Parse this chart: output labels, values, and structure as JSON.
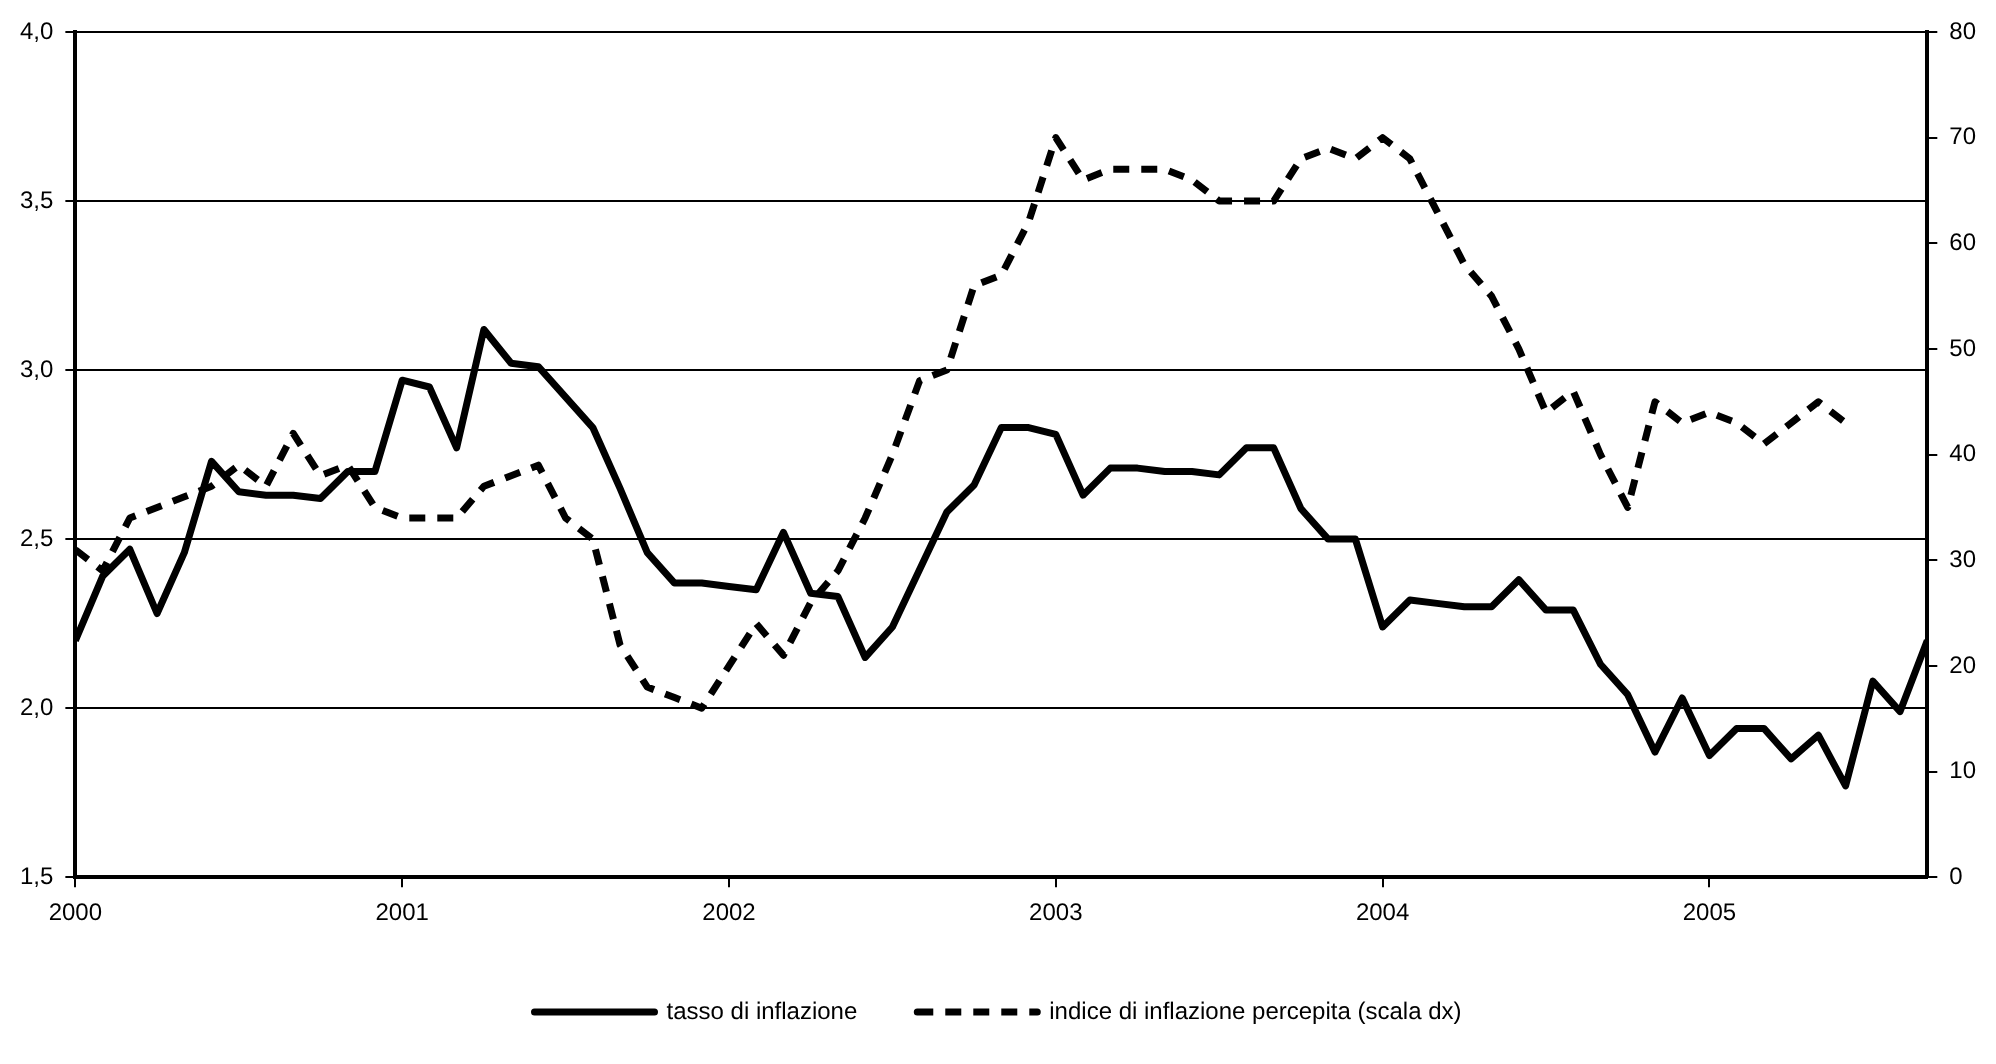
{
  "chart_data": {
    "type": "line",
    "x": [
      "2000-01",
      "2000-02",
      "2000-03",
      "2000-04",
      "2000-05",
      "2000-06",
      "2000-07",
      "2000-08",
      "2000-09",
      "2000-10",
      "2000-11",
      "2000-12",
      "2001-01",
      "2001-02",
      "2001-03",
      "2001-04",
      "2001-05",
      "2001-06",
      "2001-07",
      "2001-08",
      "2001-09",
      "2001-10",
      "2001-11",
      "2001-12",
      "2002-01",
      "2002-02",
      "2002-03",
      "2002-04",
      "2002-05",
      "2002-06",
      "2002-07",
      "2002-08",
      "2002-09",
      "2002-10",
      "2002-11",
      "2002-12",
      "2003-01",
      "2003-02",
      "2003-03",
      "2003-04",
      "2003-05",
      "2003-06",
      "2003-07",
      "2003-08",
      "2003-09",
      "2003-10",
      "2003-11",
      "2003-12",
      "2004-01",
      "2004-02",
      "2004-03",
      "2004-04",
      "2004-05",
      "2004-06",
      "2004-07",
      "2004-08",
      "2004-09",
      "2004-10",
      "2004-11",
      "2004-12",
      "2005-01",
      "2005-02",
      "2005-03",
      "2005-04",
      "2005-05",
      "2005-06",
      "2005-07",
      "2005-08",
      "2005-09"
    ],
    "series": [
      {
        "name": "tasso di inflazione",
        "color": "#000000",
        "line_style": "solid",
        "values": [
          2.2,
          2.39,
          2.47,
          2.28,
          2.46,
          2.73,
          2.64,
          2.63,
          2.63,
          2.62,
          2.7,
          2.7,
          2.97,
          2.95,
          2.77,
          3.12,
          3.02,
          3.01,
          2.92,
          2.83,
          2.65,
          2.46,
          2.37,
          2.37,
          2.36,
          2.35,
          2.52,
          2.34,
          2.33,
          2.15,
          2.24,
          2.41,
          2.58,
          2.66,
          2.83,
          2.83,
          2.81,
          2.63,
          2.71,
          2.71,
          2.7,
          2.7,
          2.69,
          2.77,
          2.77,
          2.59,
          2.5,
          2.5,
          2.24,
          2.32,
          2.31,
          2.3,
          2.3,
          2.38,
          2.29,
          2.29,
          2.13,
          2.04,
          1.87,
          2.03,
          1.86,
          1.94,
          1.94,
          1.85,
          1.92,
          1.77,
          2.08,
          1.99,
          2.2
        ]
      },
      {
        "name": "indice di inflazione percepita (scala dx)",
        "color": "#000000",
        "line_style": "dashed",
        "axis": "y2",
        "values": [
          31,
          29,
          34,
          35,
          36,
          37,
          39,
          37,
          42,
          38,
          39,
          35,
          34,
          34,
          34,
          37,
          38,
          39,
          34,
          32,
          22,
          18,
          17,
          16,
          20,
          24,
          21,
          26,
          29,
          34,
          40,
          47,
          48,
          56,
          57,
          62,
          70,
          66,
          67,
          67,
          67,
          66,
          64,
          64,
          64,
          68,
          69,
          68,
          70,
          68,
          63,
          58,
          55,
          50,
          44,
          46,
          40,
          35,
          45,
          43,
          44,
          43,
          41,
          43,
          45,
          43,
          null,
          null,
          null
        ]
      }
    ],
    "xlim": [
      "2000-01",
      "2005-09"
    ],
    "xticks": [
      {
        "value": "2000-01",
        "label": "2000"
      },
      {
        "value": "2001-01",
        "label": "2001"
      },
      {
        "value": "2002-01",
        "label": "2002"
      },
      {
        "value": "2003-01",
        "label": "2003"
      },
      {
        "value": "2004-01",
        "label": "2004"
      },
      {
        "value": "2005-01",
        "label": "2005"
      }
    ],
    "ylim": [
      1.5,
      4
    ],
    "yticks": [
      {
        "value": 1.5,
        "label": "1,5"
      },
      {
        "value": 2,
        "label": "2,0"
      },
      {
        "value": 2.5,
        "label": "2,5"
      },
      {
        "value": 3,
        "label": "3,0"
      },
      {
        "value": 3.5,
        "label": "3,5"
      },
      {
        "value": 4,
        "label": "4,0"
      }
    ],
    "y2lim": [
      0,
      80
    ],
    "y2ticks": [
      0,
      10,
      20,
      30,
      40,
      50,
      60,
      70,
      80
    ],
    "grid": "y",
    "legend": "bottom",
    "marker": "none"
  }
}
